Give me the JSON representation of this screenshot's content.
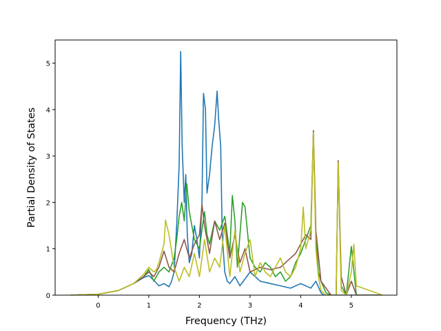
{
  "chart_data": {
    "type": "line",
    "title": "",
    "xlabel": "Frequency (THz)",
    "ylabel": "Partial Density of States",
    "xlim": [
      -0.85,
      5.9
    ],
    "ylim": [
      0,
      5.5
    ],
    "xticks": [
      0,
      1,
      2,
      3,
      4,
      5
    ],
    "yticks": [
      0,
      1,
      2,
      3,
      4,
      5
    ],
    "grid": false,
    "legend": "none",
    "series": [
      {
        "color": "#1f77b4",
        "x": [
          -0.55,
          0.0,
          0.4,
          0.7,
          0.9,
          1.0,
          1.1,
          1.2,
          1.3,
          1.4,
          1.45,
          1.5,
          1.55,
          1.6,
          1.63,
          1.66,
          1.7,
          1.73,
          1.76,
          1.8,
          1.85,
          1.9,
          1.95,
          2.0,
          2.05,
          2.08,
          2.12,
          2.15,
          2.2,
          2.25,
          2.3,
          2.35,
          2.38,
          2.42,
          2.45,
          2.5,
          2.55,
          2.6,
          2.7,
          2.8,
          2.9,
          3.0,
          3.2,
          3.4,
          3.6,
          3.8,
          4.0,
          4.2,
          4.3,
          4.4,
          4.45,
          5.62
        ],
        "y": [
          0,
          0.02,
          0.1,
          0.25,
          0.38,
          0.42,
          0.32,
          0.2,
          0.25,
          0.18,
          0.3,
          0.5,
          1.5,
          2.8,
          5.25,
          3.2,
          2.0,
          2.6,
          1.3,
          0.7,
          0.9,
          1.5,
          1.2,
          0.8,
          2.0,
          4.35,
          4.0,
          2.2,
          2.6,
          3.2,
          3.65,
          4.4,
          3.8,
          3.2,
          1.3,
          0.5,
          0.3,
          0.25,
          0.4,
          0.2,
          0.35,
          0.5,
          0.3,
          0.25,
          0.2,
          0.15,
          0.25,
          0.15,
          0.3,
          0.05,
          0,
          0
        ]
      },
      {
        "color": "#2ca02c",
        "x": [
          -0.55,
          0.0,
          0.4,
          0.7,
          0.9,
          1.0,
          1.1,
          1.2,
          1.3,
          1.4,
          1.5,
          1.55,
          1.6,
          1.65,
          1.7,
          1.75,
          1.8,
          1.9,
          2.0,
          2.1,
          2.15,
          2.2,
          2.3,
          2.4,
          2.5,
          2.6,
          2.65,
          2.7,
          2.75,
          2.8,
          2.85,
          2.9,
          3.0,
          3.1,
          3.2,
          3.3,
          3.4,
          3.5,
          3.6,
          3.7,
          3.8,
          3.9,
          4.0,
          4.1,
          4.2,
          4.25,
          4.3,
          4.35,
          4.4,
          4.5,
          4.6,
          4.7,
          4.74,
          4.8,
          4.9,
          5.0,
          5.1,
          5.62
        ],
        "y": [
          0,
          0.02,
          0.1,
          0.25,
          0.4,
          0.55,
          0.3,
          0.5,
          0.6,
          0.5,
          0.8,
          1.2,
          1.7,
          2.0,
          1.6,
          2.4,
          1.8,
          1.2,
          1.0,
          1.8,
          1.3,
          1.1,
          1.6,
          1.4,
          1.7,
          0.9,
          2.15,
          1.6,
          0.6,
          1.3,
          2.0,
          1.9,
          0.8,
          0.6,
          0.5,
          0.7,
          0.6,
          0.4,
          0.5,
          0.3,
          0.4,
          0.7,
          0.9,
          1.2,
          1.5,
          3.5,
          1.3,
          0.5,
          0.3,
          0.05,
          0,
          0,
          2.85,
          0.2,
          0,
          1.05,
          0,
          0
        ]
      },
      {
        "color": "#8c564b",
        "x": [
          -0.55,
          0.0,
          0.4,
          0.7,
          0.9,
          1.0,
          1.1,
          1.2,
          1.3,
          1.4,
          1.5,
          1.6,
          1.7,
          1.8,
          1.9,
          2.0,
          2.05,
          2.1,
          2.2,
          2.3,
          2.4,
          2.5,
          2.6,
          2.7,
          2.8,
          2.9,
          3.0,
          3.2,
          3.4,
          3.6,
          3.8,
          3.9,
          4.0,
          4.1,
          4.2,
          4.25,
          4.3,
          4.4,
          4.6,
          4.7,
          4.74,
          4.8,
          4.9,
          5.0,
          5.1,
          5.62
        ],
        "y": [
          0,
          0.02,
          0.1,
          0.25,
          0.4,
          0.5,
          0.4,
          0.6,
          0.95,
          0.6,
          0.5,
          0.9,
          1.2,
          0.8,
          1.1,
          1.3,
          1.95,
          1.5,
          0.9,
          1.6,
          1.2,
          1.55,
          0.8,
          1.3,
          0.7,
          1.0,
          0.5,
          0.6,
          0.55,
          0.6,
          0.8,
          0.9,
          1.1,
          1.3,
          1.2,
          3.55,
          1.4,
          0.3,
          0,
          0,
          2.9,
          0.4,
          0,
          0.3,
          0,
          0
        ]
      },
      {
        "color": "#bcbd22",
        "x": [
          -0.55,
          0.0,
          0.4,
          0.7,
          0.9,
          1.0,
          1.1,
          1.15,
          1.2,
          1.3,
          1.33,
          1.4,
          1.5,
          1.6,
          1.7,
          1.8,
          1.9,
          2.0,
          2.1,
          2.2,
          2.3,
          2.4,
          2.5,
          2.6,
          2.7,
          2.8,
          2.9,
          3.0,
          3.1,
          3.2,
          3.3,
          3.4,
          3.5,
          3.6,
          3.7,
          3.8,
          3.9,
          4.0,
          4.05,
          4.1,
          4.2,
          4.25,
          4.3,
          4.35,
          4.4,
          4.5,
          4.6,
          4.7,
          4.74,
          4.8,
          4.9,
          5.0,
          5.05,
          5.1,
          5.62
        ],
        "y": [
          0,
          0.02,
          0.1,
          0.25,
          0.45,
          0.6,
          0.5,
          0.55,
          0.7,
          1.1,
          1.62,
          1.3,
          0.6,
          0.3,
          0.6,
          0.4,
          0.9,
          0.4,
          1.2,
          0.5,
          0.8,
          0.6,
          1.5,
          0.4,
          1.4,
          0.5,
          0.9,
          1.2,
          0.4,
          0.7,
          0.5,
          0.4,
          0.6,
          0.8,
          0.5,
          0.4,
          0.6,
          1.0,
          1.9,
          1.0,
          1.4,
          3.5,
          1.0,
          0.4,
          0.1,
          0,
          0,
          0,
          2.85,
          0.1,
          0,
          0.5,
          1.1,
          0.2,
          0
        ]
      }
    ]
  }
}
